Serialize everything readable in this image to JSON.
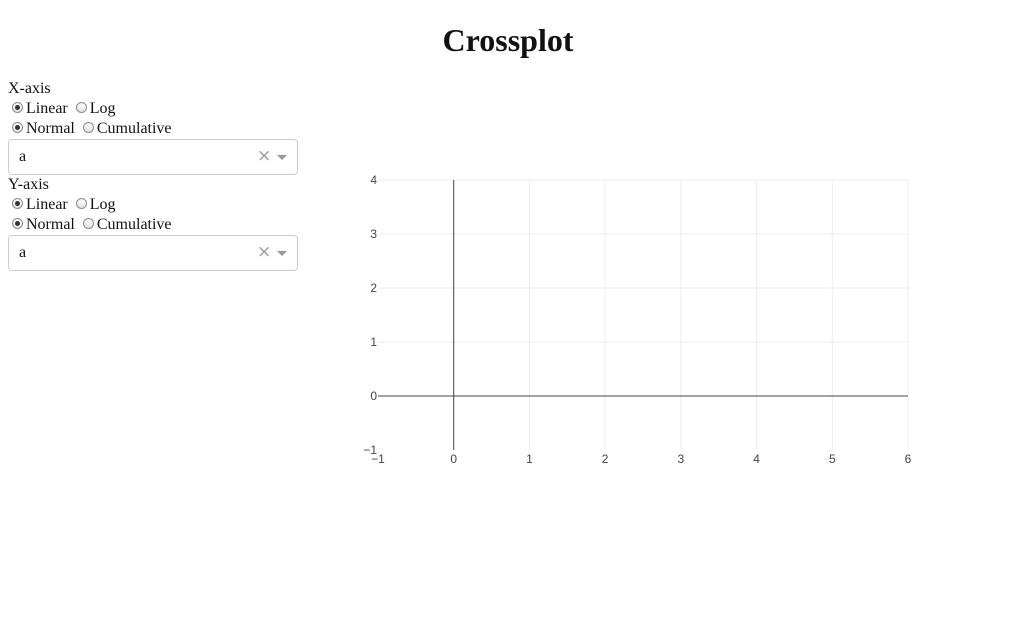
{
  "page": {
    "title": "Crossplot"
  },
  "x_axis": {
    "label": "X-axis",
    "scale_options": [
      "Linear",
      "Log"
    ],
    "scale_selected": "Linear",
    "mode_options": [
      "Normal",
      "Cumulative"
    ],
    "mode_selected": "Normal",
    "dropdown": {
      "value": "a",
      "clear_glyph": "×"
    }
  },
  "y_axis": {
    "label": "Y-axis",
    "scale_options": [
      "Linear",
      "Log"
    ],
    "scale_selected": "Linear",
    "mode_options": [
      "Normal",
      "Cumulative"
    ],
    "mode_selected": "Normal",
    "dropdown": {
      "value": "a",
      "clear_glyph": "×"
    }
  },
  "chart_data": {
    "type": "scatter",
    "series": [],
    "xlim": [
      -1,
      6
    ],
    "ylim": [
      -1,
      4
    ],
    "x_ticks": [
      "−1",
      "0",
      "1",
      "2",
      "3",
      "4",
      "5",
      "6"
    ],
    "y_ticks": [
      "−1",
      "0",
      "1",
      "2",
      "3",
      "4"
    ],
    "grid": true,
    "zero_lines": true,
    "colors": {
      "grid": "#eeeeee",
      "zeroline": "#444444",
      "tick_text": "#444444"
    }
  }
}
